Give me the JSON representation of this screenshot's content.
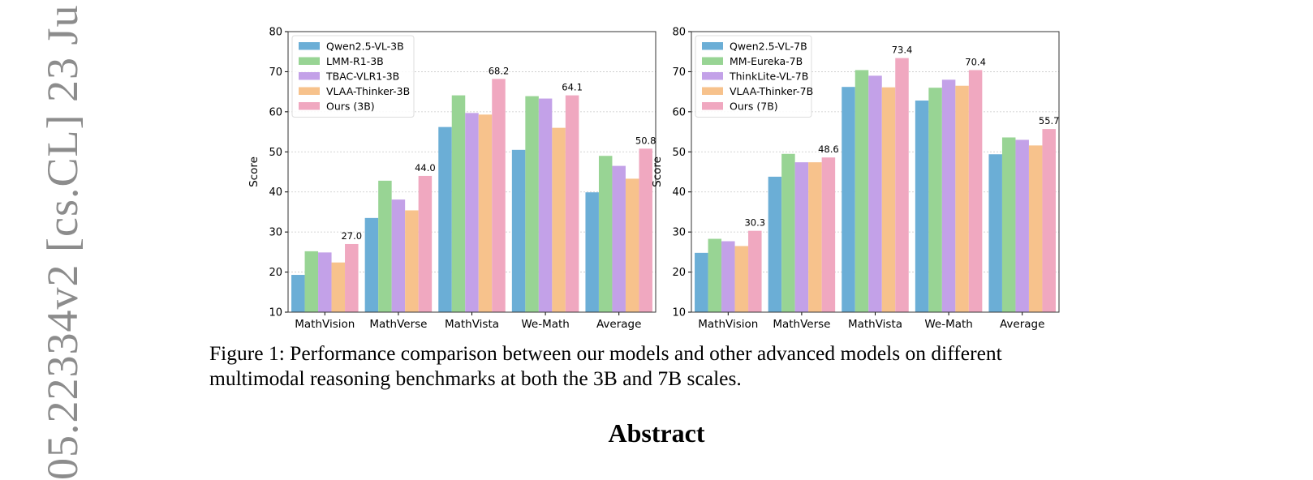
{
  "arxiv_id": "05.22334v2  [cs.CL]  23 Ju",
  "colors": {
    "Qwen": "#6baed6",
    "R1": "#98d494",
    "TBAC": "#c3a1e8",
    "VLAA": "#f7c28c",
    "Ours": "#f0a8c0"
  },
  "chart_data": [
    {
      "type": "bar",
      "title": "",
      "ylabel": "Score",
      "xlabel": "",
      "ylim": [
        10,
        80
      ],
      "yticks": [
        "10",
        "20",
        "30",
        "40",
        "50",
        "60",
        "70",
        "80"
      ],
      "grid": "horizontal dotted",
      "legend_position": "top-left",
      "categories": [
        "MathVision",
        "MathVerse",
        "MathVista",
        "We-Math",
        "Average"
      ],
      "series": [
        {
          "name": "Qwen2.5-VL-3B",
          "color": "#6baed6",
          "values": [
            19.3,
            33.5,
            56.2,
            50.5,
            39.9
          ]
        },
        {
          "name": "LMM-R1-3B",
          "color": "#98d494",
          "values": [
            25.2,
            42.8,
            64.1,
            63.9,
            49.0
          ]
        },
        {
          "name": "TBAC-VLR1-3B",
          "color": "#c3a1e8",
          "values": [
            24.9,
            38.1,
            59.7,
            63.3,
            46.5
          ]
        },
        {
          "name": "VLAA-Thinker-3B",
          "color": "#f7c28c",
          "values": [
            22.4,
            35.4,
            59.3,
            56.0,
            43.3
          ]
        },
        {
          "name": "Ours (3B)",
          "color": "#f0a8c0",
          "values": [
            27.0,
            44.0,
            68.2,
            64.1,
            50.8
          ]
        }
      ],
      "data_labels": [
        "27.0",
        "44.0",
        "68.2",
        "64.1",
        "50.8"
      ]
    },
    {
      "type": "bar",
      "title": "",
      "ylabel": "Score",
      "xlabel": "",
      "ylim": [
        10,
        80
      ],
      "yticks": [
        "10",
        "20",
        "30",
        "40",
        "50",
        "60",
        "70",
        "80"
      ],
      "grid": "horizontal dotted",
      "legend_position": "top-left",
      "categories": [
        "MathVision",
        "MathVerse",
        "MathVista",
        "We-Math",
        "Average"
      ],
      "series": [
        {
          "name": "Qwen2.5-VL-7B",
          "color": "#6baed6",
          "values": [
            24.8,
            43.8,
            66.2,
            62.8,
            49.4
          ]
        },
        {
          "name": "MM-Eureka-7B",
          "color": "#98d494",
          "values": [
            28.3,
            49.5,
            70.4,
            66.0,
            53.6
          ]
        },
        {
          "name": "ThinkLite-VL-7B",
          "color": "#c3a1e8",
          "values": [
            27.7,
            47.4,
            69.0,
            68.0,
            53.0
          ]
        },
        {
          "name": "VLAA-Thinker-7B",
          "color": "#f7c28c",
          "values": [
            26.5,
            47.4,
            66.1,
            66.5,
            51.6
          ]
        },
        {
          "name": "Ours (7B)",
          "color": "#f0a8c0",
          "values": [
            30.3,
            48.6,
            73.4,
            70.4,
            55.7
          ]
        }
      ],
      "data_labels": [
        "30.3",
        "48.6",
        "73.4",
        "70.4",
        "55.7"
      ]
    }
  ],
  "caption": "Figure 1: Performance comparison between our models and other advanced models on different multimodal reasoning benchmarks at both the 3B and 7B scales.",
  "abstract_heading": "Abstract"
}
